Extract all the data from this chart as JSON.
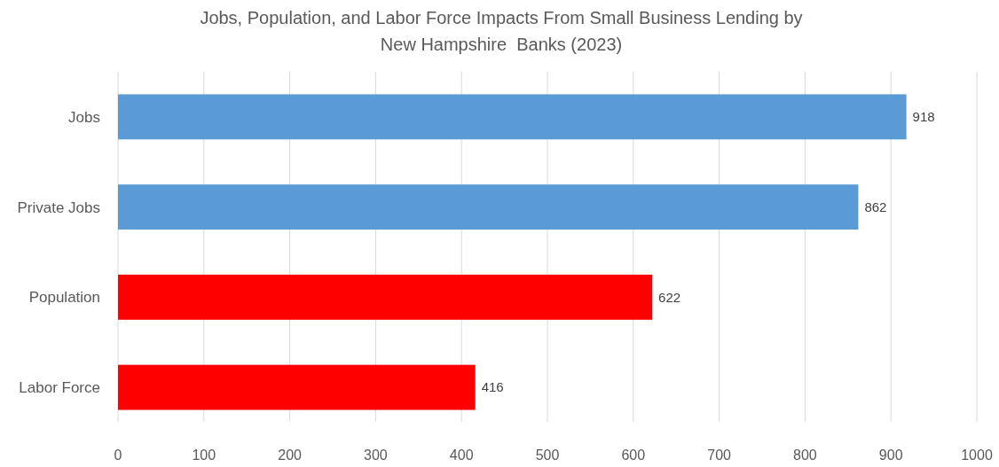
{
  "chart_data": {
    "type": "bar",
    "orientation": "horizontal",
    "title": "Jobs, Population, and Labor Force Impacts From Small Business Lending by\nNew Hampshire  Banks (2023)",
    "categories": [
      "Jobs",
      "Private Jobs",
      "Population",
      "Labor Force"
    ],
    "values": [
      918,
      862,
      622,
      416
    ],
    "colors": [
      "#5b9bd5",
      "#5b9bd5",
      "#ff0000",
      "#ff0000"
    ],
    "xlim": [
      0,
      1000
    ],
    "xticks": [
      0,
      100,
      200,
      300,
      400,
      500,
      600,
      700,
      800,
      900,
      1000
    ],
    "grid": "x",
    "data_labels": true
  }
}
